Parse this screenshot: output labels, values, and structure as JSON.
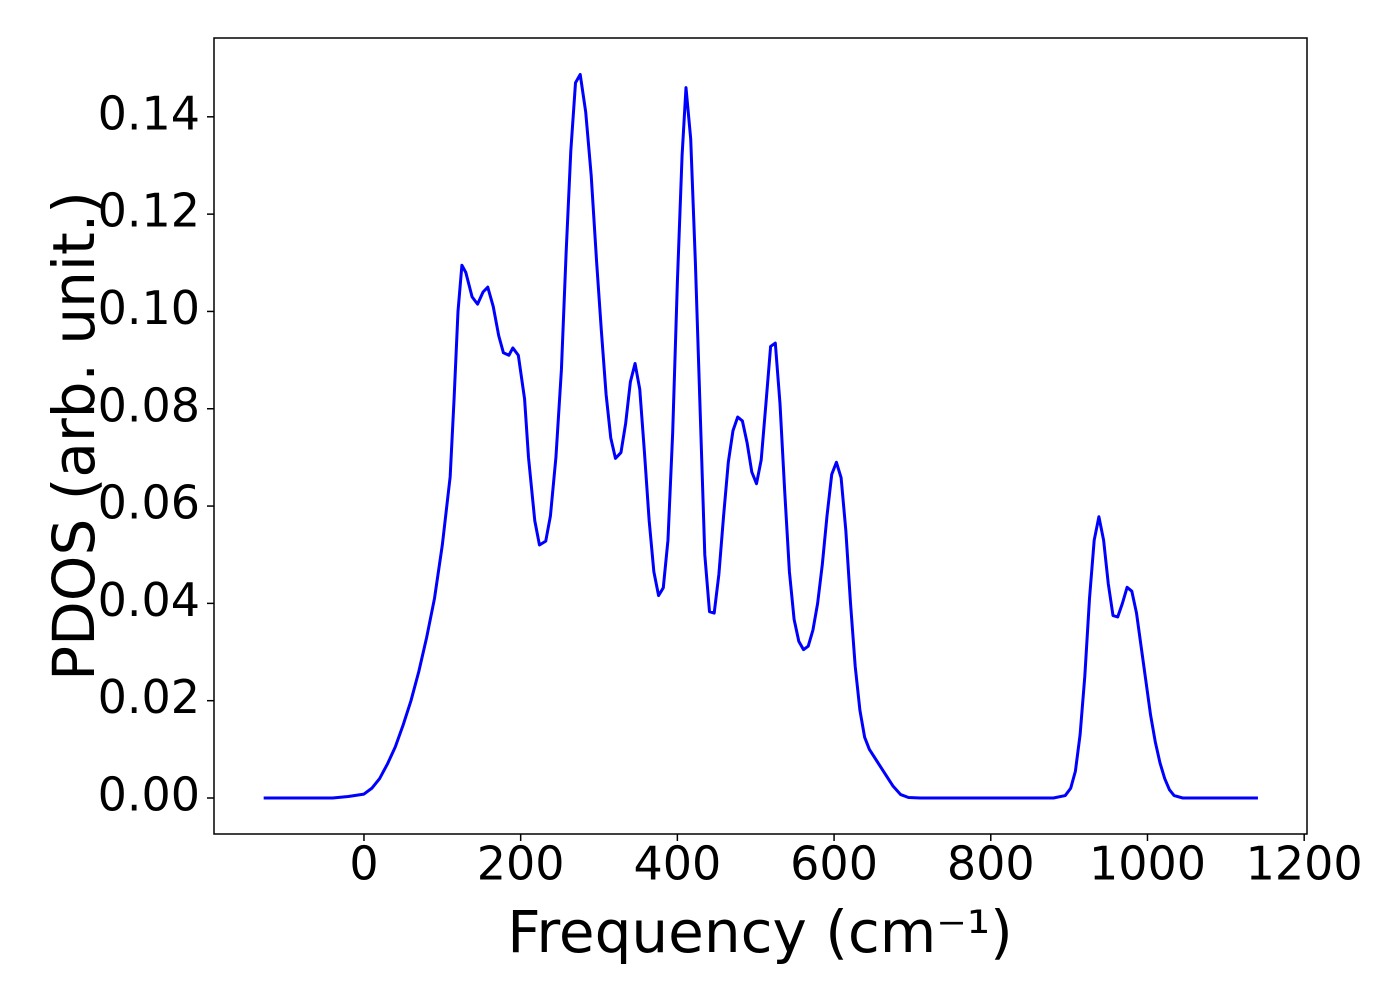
{
  "chart_data": {
    "type": "line",
    "xlabel": "Frequency (cm⁻¹)",
    "ylabel": "PDOS (arb. unit.)",
    "xlim": [
      -191.4,
      1203.6
    ],
    "ylim": [
      -0.0074,
      0.1562
    ],
    "xticks": [
      0,
      200,
      400,
      600,
      800,
      1000,
      1200
    ],
    "yticks": [
      {
        "value": 0,
        "label": "0.00"
      },
      {
        "value": 0.02,
        "label": "0.02"
      },
      {
        "value": 0.04,
        "label": "0.04"
      },
      {
        "value": 0.06,
        "label": "0.06"
      },
      {
        "value": 0.08,
        "label": "0.08"
      },
      {
        "value": 0.1,
        "label": "0.10"
      },
      {
        "value": 0.12,
        "label": "0.12"
      },
      {
        "value": 0.14,
        "label": "0.14"
      }
    ],
    "grid": false,
    "series": [
      {
        "color": "#0000ff",
        "x": [
          -128,
          -40,
          -20,
          0,
          10,
          20,
          30,
          40,
          50,
          60,
          70,
          80,
          90,
          100,
          110,
          115,
          120,
          125,
          130,
          138,
          145,
          152,
          158,
          165,
          172,
          178,
          185,
          190,
          197,
          205,
          210,
          218,
          224,
          232,
          238,
          245,
          252,
          258,
          264,
          270,
          276,
          283,
          290,
          297,
          303,
          309,
          315,
          321,
          328,
          334,
          340,
          346,
          352,
          358,
          364,
          370,
          376,
          382,
          388,
          394,
          400,
          406,
          411,
          417,
          423,
          429,
          435,
          441,
          447,
          453,
          459,
          465,
          471,
          477,
          483,
          489,
          495,
          501,
          507,
          513,
          519,
          525,
          531,
          537,
          543,
          549,
          555,
          561,
          567,
          573,
          579,
          585,
          591,
          597,
          603,
          609,
          615,
          621,
          627,
          633,
          639,
          645,
          655,
          665,
          675,
          685,
          695,
          710,
          880,
          895,
          902,
          908,
          914,
          920,
          926,
          932,
          938,
          944,
          950,
          956,
          962,
          968,
          974,
          980,
          986,
          992,
          998,
          1004,
          1010,
          1016,
          1022,
          1028,
          1034,
          1045,
          1141
        ],
        "values": [
          0,
          0,
          0.0003,
          0.0008,
          0.002,
          0.004,
          0.007,
          0.0105,
          0.015,
          0.02,
          0.026,
          0.033,
          0.041,
          0.052,
          0.066,
          0.082,
          0.1,
          0.1095,
          0.108,
          0.103,
          0.1015,
          0.104,
          0.105,
          0.101,
          0.095,
          0.0915,
          0.091,
          0.0925,
          0.091,
          0.082,
          0.07,
          0.057,
          0.052,
          0.0528,
          0.058,
          0.07,
          0.088,
          0.112,
          0.133,
          0.147,
          0.1487,
          0.141,
          0.128,
          0.11,
          0.096,
          0.083,
          0.074,
          0.0698,
          0.071,
          0.077,
          0.0855,
          0.0893,
          0.084,
          0.071,
          0.057,
          0.0465,
          0.0416,
          0.0432,
          0.053,
          0.075,
          0.106,
          0.132,
          0.146,
          0.1355,
          0.11,
          0.08,
          0.05,
          0.0383,
          0.038,
          0.046,
          0.058,
          0.069,
          0.0755,
          0.0783,
          0.0775,
          0.073,
          0.067,
          0.0646,
          0.0695,
          0.081,
          0.0928,
          0.0935,
          0.081,
          0.063,
          0.0465,
          0.0367,
          0.0322,
          0.0305,
          0.0312,
          0.0345,
          0.04,
          0.048,
          0.058,
          0.0665,
          0.069,
          0.0658,
          0.055,
          0.04,
          0.027,
          0.018,
          0.0125,
          0.01,
          0.0075,
          0.005,
          0.0025,
          0.0007,
          0.0001,
          0,
          0,
          0.0005,
          0.002,
          0.0055,
          0.013,
          0.025,
          0.041,
          0.053,
          0.0578,
          0.053,
          0.044,
          0.0375,
          0.0372,
          0.04,
          0.0433,
          0.0425,
          0.038,
          0.031,
          0.024,
          0.017,
          0.0115,
          0.0072,
          0.004,
          0.0017,
          0.0005,
          0,
          0
        ]
      }
    ]
  }
}
